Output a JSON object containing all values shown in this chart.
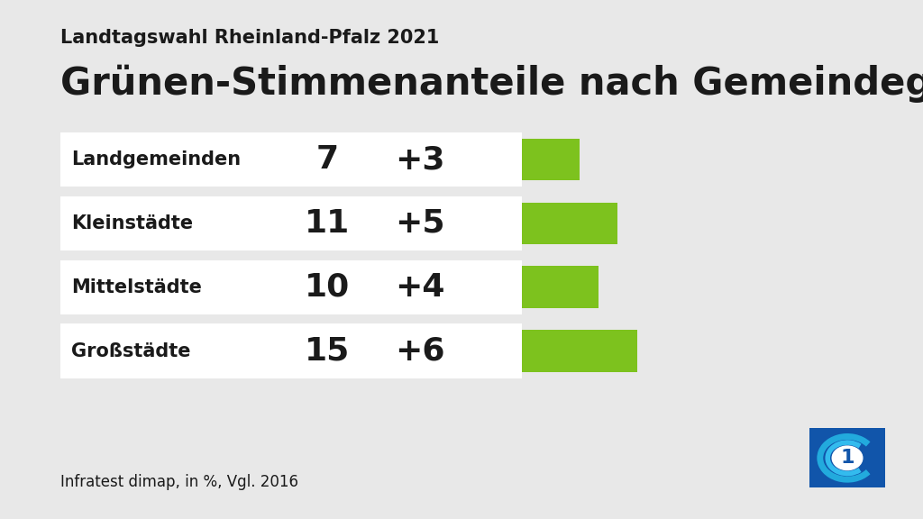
{
  "subtitle": "Landtagswahl Rheinland-Pfalz 2021",
  "title": "Grünen-Stimmenanteile nach Gemeindegrößen",
  "categories": [
    "Landgemeinden",
    "Kleinstädte",
    "Mittelstädte",
    "Großstädte"
  ],
  "values": [
    7,
    11,
    10,
    15
  ],
  "changes": [
    "+3",
    "+5",
    "+4",
    "+6"
  ],
  "change_values": [
    3,
    5,
    4,
    6
  ],
  "bar_color": "#7DC21E",
  "background_color": "#E8E8E8",
  "row_bg_color": "#FFFFFF",
  "text_color": "#1A1A1A",
  "source_text": "Infratest dimap, in %, Vgl. 2016",
  "value_fontsize": 26,
  "change_fontsize": 26,
  "label_fontsize": 15,
  "subtitle_fontsize": 15,
  "title_fontsize": 30
}
